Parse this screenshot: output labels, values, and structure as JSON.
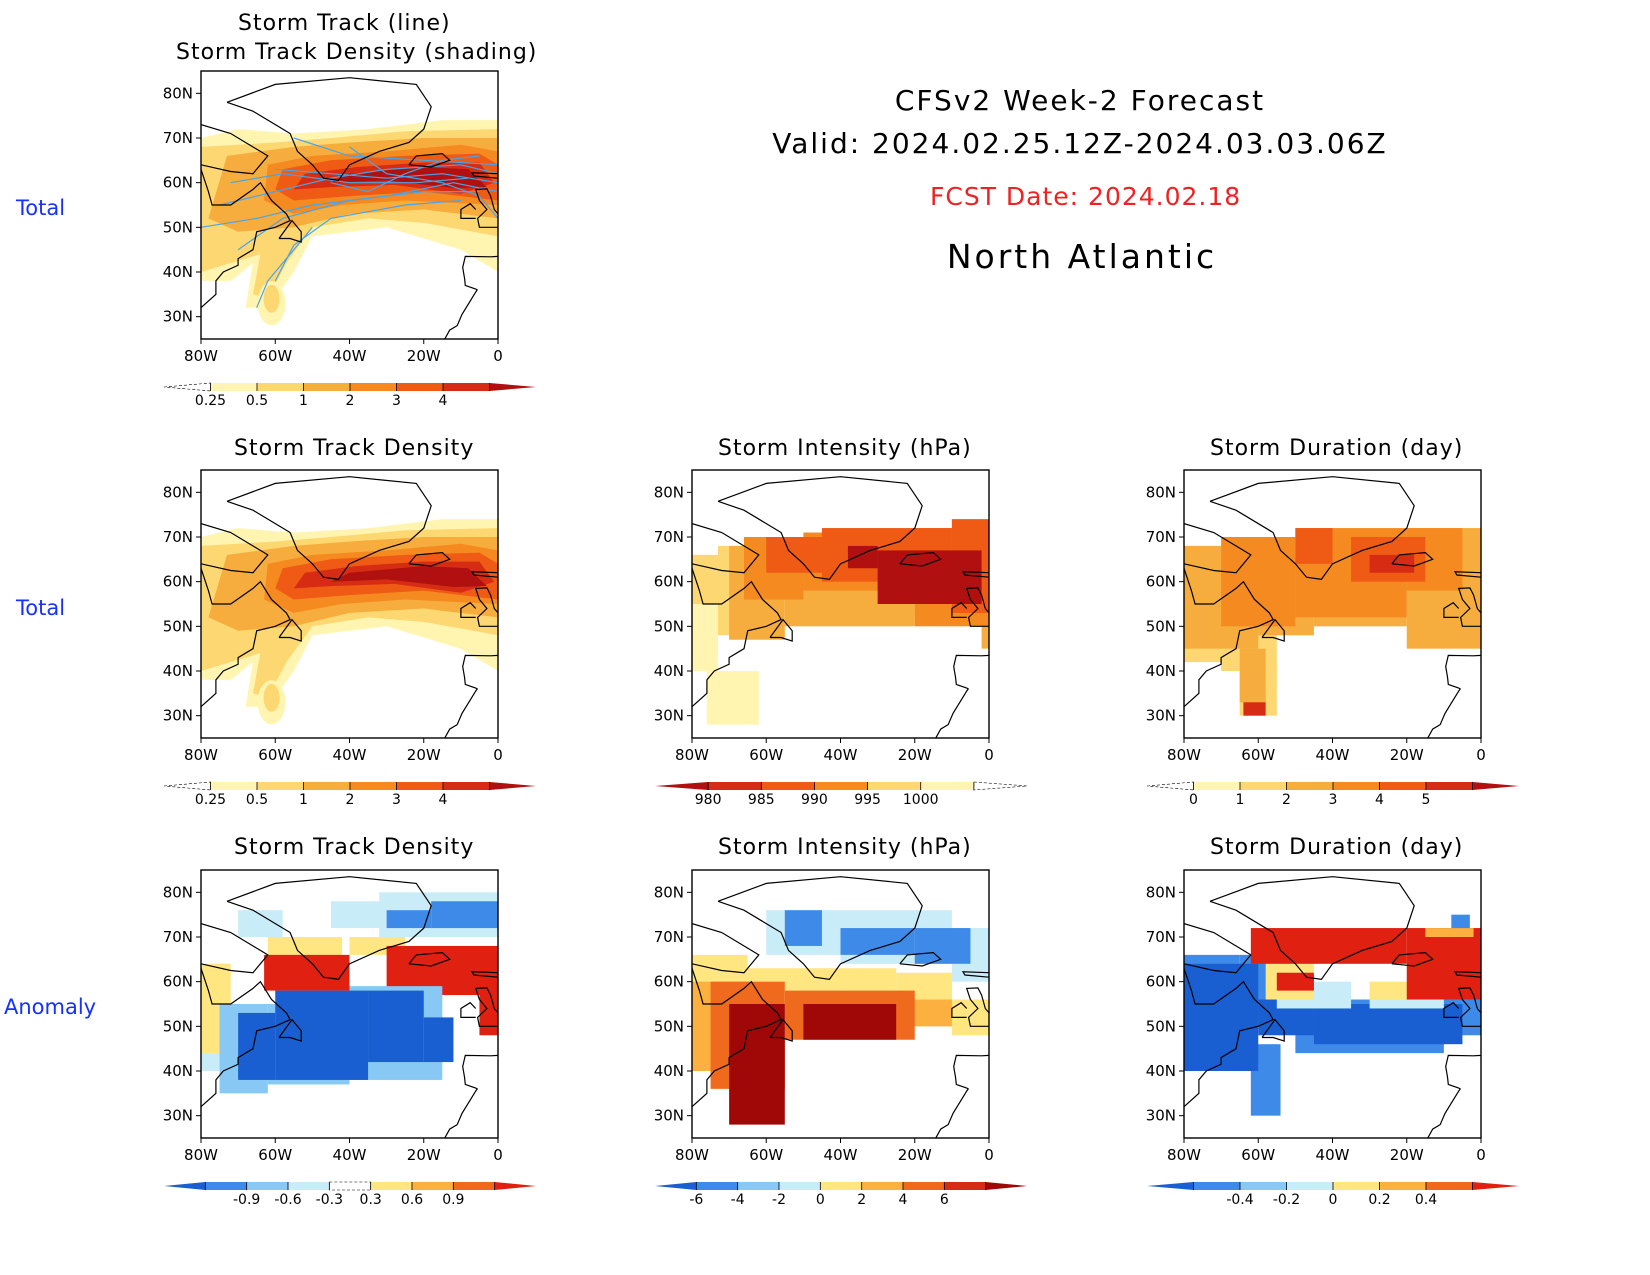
{
  "header": {
    "line1": "CFSv2 Week-2 Forecast",
    "line2": "Valid: 2024.02.25.12Z-2024.03.03.06Z",
    "fcst": "FCST Date: 2024.02.18",
    "region": "North Atlantic"
  },
  "row_labels": [
    "Total",
    "Total",
    "Anomaly"
  ],
  "axes": {
    "lat_ticks": [
      "80N",
      "70N",
      "60N",
      "50N",
      "40N",
      "30N"
    ],
    "lon_ticks": [
      "80W",
      "60W",
      "40W",
      "20W",
      "0"
    ]
  },
  "panels": [
    {
      "id": "track",
      "title_line1": "Storm Track (line)",
      "title_line2": "Storm Track Density (shading)",
      "colorbar": {
        "labels": [
          "0.25",
          "0.5",
          "1",
          "2",
          "3",
          "4"
        ],
        "colors": [
          "#ffffff",
          "#fff5b0",
          "#fdd872",
          "#f7ad3d",
          "#f58a20",
          "#ef5a14",
          "#d72c14",
          "#b01010"
        ]
      }
    },
    {
      "id": "density_total",
      "title": "Storm Track Density",
      "colorbar": {
        "labels": [
          "0.25",
          "0.5",
          "1",
          "2",
          "3",
          "4"
        ],
        "colors": [
          "#ffffff",
          "#fff5b0",
          "#fdd872",
          "#f7ad3d",
          "#f58a20",
          "#ef5a14",
          "#d72c14",
          "#b01010"
        ]
      }
    },
    {
      "id": "intensity_total",
      "title": "Storm Intensity (hPa)",
      "colorbar": {
        "labels": [
          "980",
          "985",
          "990",
          "995",
          "1000"
        ],
        "colors": [
          "#b01010",
          "#d72c14",
          "#ef5a14",
          "#f58a20",
          "#fdd872",
          "#fff5b0",
          "#ffffff"
        ]
      }
    },
    {
      "id": "duration_total",
      "title": "Storm Duration (day)",
      "colorbar": {
        "labels": [
          "0",
          "1",
          "2",
          "3",
          "4",
          "5"
        ],
        "colors": [
          "#ffffff",
          "#fff5b0",
          "#fdd872",
          "#f7ad3d",
          "#f58a20",
          "#ef5a14",
          "#d72c14",
          "#b01010"
        ]
      }
    },
    {
      "id": "density_anom",
      "title": "Storm Track Density",
      "colorbar": {
        "labels": [
          "-0.9",
          "-0.6",
          "-0.3",
          "0.3",
          "0.6",
          "0.9"
        ],
        "colors": [
          "#1a5fd1",
          "#3e8ae8",
          "#87c8f5",
          "#c8ecf8",
          "#ffffff",
          "#ffe680",
          "#fbb040",
          "#f06a1e",
          "#e02010"
        ]
      }
    },
    {
      "id": "intensity_anom",
      "title": "Storm Intensity (hPa)",
      "colorbar": {
        "labels": [
          "-6",
          "-4",
          "-2",
          "0",
          "2",
          "4",
          "6"
        ],
        "colors": [
          "#1a5fd1",
          "#3e8ae8",
          "#87c8f5",
          "#c8ecf8",
          "#ffe680",
          "#fbb040",
          "#f06a1e",
          "#d72c14",
          "#a00808"
        ]
      }
    },
    {
      "id": "duration_anom",
      "title": "Storm Duration (day)",
      "colorbar": {
        "labels": [
          "-0.4",
          "-0.2",
          "0",
          "0.2",
          "0.4"
        ],
        "colors": [
          "#1a5fd1",
          "#3e8ae8",
          "#87c8f5",
          "#c8ecf8",
          "#ffe680",
          "#fbb040",
          "#f06a1e",
          "#e02010"
        ]
      }
    }
  ]
}
